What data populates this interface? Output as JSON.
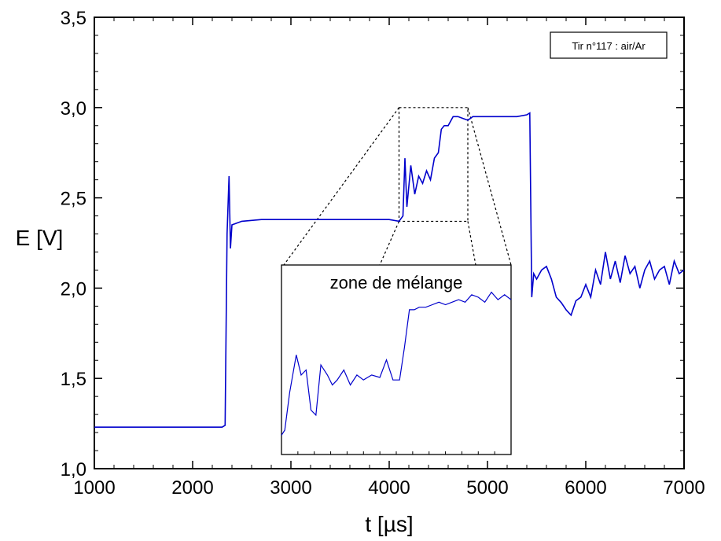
{
  "chart_data": {
    "type": "line",
    "xlabel": "t [µs]",
    "ylabel": "E [V]",
    "xlim": [
      1000,
      7000
    ],
    "ylim": [
      1.0,
      3.5
    ],
    "x_ticks": [
      "1000",
      "2000",
      "3000",
      "4000",
      "5000",
      "6000",
      "7000"
    ],
    "y_ticks": [
      "1,0",
      "1,5",
      "2,0",
      "2,5",
      "3,0",
      "3,5"
    ],
    "grid": false,
    "line_color": "#0000cc",
    "legend_box_text": "Tir n°117 : air/Ar",
    "legend_position": "top-right",
    "series": [
      {
        "x": [
          1000,
          1500,
          2000,
          2300,
          2330,
          2350,
          2370,
          2385,
          2400,
          2500,
          2700,
          3000,
          3500,
          4000,
          4100,
          4140,
          4160,
          4180,
          4220,
          4260,
          4300,
          4340,
          4380,
          4420,
          4460,
          4500,
          4530,
          4560,
          4600,
          4650,
          4700,
          4750,
          4800,
          4850,
          4900,
          5000,
          5100,
          5200,
          5300,
          5400,
          5430,
          5450,
          5470,
          5500,
          5550,
          5600,
          5650,
          5700,
          5750,
          5800,
          5850,
          5900,
          5950,
          6000,
          6050,
          6100,
          6150,
          6200,
          6250,
          6300,
          6350,
          6400,
          6450,
          6500,
          6550,
          6600,
          6650,
          6700,
          6750,
          6800,
          6850,
          6900,
          6950,
          7000
        ],
        "y": [
          1.23,
          1.23,
          1.23,
          1.23,
          1.24,
          2.3,
          2.62,
          2.22,
          2.35,
          2.37,
          2.38,
          2.38,
          2.38,
          2.38,
          2.37,
          2.4,
          2.72,
          2.45,
          2.68,
          2.52,
          2.62,
          2.58,
          2.65,
          2.6,
          2.72,
          2.75,
          2.88,
          2.9,
          2.9,
          2.95,
          2.95,
          2.94,
          2.93,
          2.95,
          2.95,
          2.95,
          2.95,
          2.95,
          2.95,
          2.96,
          2.97,
          1.95,
          2.08,
          2.05,
          2.1,
          2.12,
          2.05,
          1.95,
          1.92,
          1.88,
          1.85,
          1.93,
          1.95,
          2.02,
          1.95,
          2.1,
          2.02,
          2.2,
          2.05,
          2.15,
          2.03,
          2.18,
          2.08,
          2.12,
          2.0,
          2.1,
          2.15,
          2.05,
          2.1,
          2.12,
          2.02,
          2.15,
          2.08,
          2.1
        ]
      }
    ],
    "inset": {
      "title": "zone de mélange",
      "x_range": [
        4100,
        4800
      ],
      "y_range": [
        2.37,
        3.0
      ],
      "x": [
        4100,
        4110,
        4125,
        4145,
        4160,
        4175,
        4190,
        4205,
        4220,
        4240,
        4255,
        4270,
        4290,
        4310,
        4330,
        4350,
        4375,
        4400,
        4420,
        4440,
        4460,
        4475,
        4490,
        4505,
        4520,
        4540,
        4560,
        4580,
        4600,
        4620,
        4640,
        4660,
        4680,
        4700,
        4720,
        4740,
        4760,
        4780,
        4800
      ],
      "y": [
        2.4,
        2.42,
        2.57,
        2.72,
        2.64,
        2.66,
        2.5,
        2.48,
        2.68,
        2.64,
        2.6,
        2.62,
        2.66,
        2.6,
        2.64,
        2.62,
        2.64,
        2.63,
        2.7,
        2.62,
        2.62,
        2.75,
        2.9,
        2.9,
        2.91,
        2.91,
        2.92,
        2.93,
        2.92,
        2.93,
        2.94,
        2.93,
        2.96,
        2.95,
        2.93,
        2.97,
        2.94,
        2.96,
        2.94
      ]
    }
  }
}
